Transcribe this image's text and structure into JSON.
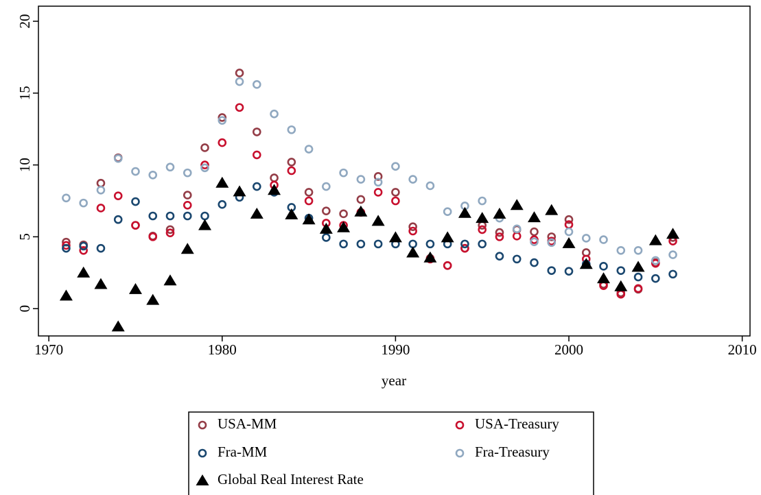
{
  "chart_data": {
    "type": "scatter",
    "x_label": "year",
    "x": [
      1971,
      1972,
      1973,
      1974,
      1975,
      1976,
      1977,
      1978,
      1979,
      1980,
      1981,
      1982,
      1983,
      1984,
      1985,
      1986,
      1987,
      1988,
      1989,
      1990,
      1991,
      1992,
      1993,
      1994,
      1995,
      1996,
      1997,
      1998,
      1999,
      2000,
      2001,
      2002,
      2003,
      2004,
      2005,
      2006
    ],
    "xlim": [
      1969.4,
      2010.45
    ],
    "xticks": [
      1970,
      1980,
      1990,
      2000,
      2010
    ],
    "ylim": [
      -1.9,
      21.05
    ],
    "yticks": [
      0,
      5,
      10,
      15,
      20
    ],
    "grid": false,
    "series": [
      {
        "name": "USA-MM",
        "color": "#943d47",
        "marker": "circle",
        "values": [
          4.63,
          4.44,
          8.73,
          10.5,
          5.8,
          5.05,
          5.5,
          7.9,
          11.2,
          13.3,
          16.4,
          12.3,
          9.1,
          10.2,
          8.1,
          6.8,
          6.6,
          7.6,
          9.2,
          8.1,
          5.7,
          3.5,
          3.0,
          4.2,
          5.8,
          5.3,
          5.5,
          5.35,
          5.0,
          6.2,
          3.9,
          1.7,
          1.1,
          1.35,
          3.2,
          4.95
        ]
      },
      {
        "name": "USA-Treasury",
        "color": "#c8102e",
        "marker": "circle",
        "values": [
          4.4,
          4.05,
          7.0,
          7.85,
          5.8,
          5.0,
          5.27,
          7.2,
          10.0,
          11.55,
          14.0,
          10.7,
          8.6,
          9.6,
          7.5,
          5.95,
          5.8,
          6.7,
          8.1,
          7.5,
          5.4,
          3.45,
          3.0,
          4.2,
          5.5,
          5.0,
          5.05,
          4.8,
          4.7,
          5.85,
          3.45,
          1.6,
          1.0,
          1.4,
          3.15,
          4.7
        ]
      },
      {
        "name": "Fra-MM",
        "color": "#1a476f",
        "marker": "circle",
        "values": [
          4.2,
          4.35,
          4.2,
          6.2,
          7.45,
          6.45,
          6.45,
          6.45,
          6.45,
          7.25,
          7.75,
          8.5,
          8.1,
          7.05,
          6.3,
          4.95,
          4.5,
          4.5,
          4.5,
          4.5,
          4.5,
          4.5,
          4.5,
          4.5,
          4.5,
          3.65,
          3.45,
          3.2,
          2.65,
          2.6,
          3.1,
          2.95,
          2.65,
          2.2,
          2.1,
          2.4
        ]
      },
      {
        "name": "Fra-Treasury",
        "color": "#90a8c0",
        "marker": "circle",
        "values": [
          7.7,
          7.35,
          8.25,
          10.45,
          9.55,
          9.3,
          9.85,
          9.45,
          9.8,
          13.1,
          15.8,
          15.6,
          13.55,
          12.45,
          11.1,
          8.5,
          9.45,
          9.0,
          8.8,
          9.9,
          9.0,
          8.55,
          6.75,
          7.15,
          7.5,
          6.3,
          5.55,
          4.65,
          4.6,
          5.35,
          4.9,
          4.8,
          4.05,
          4.05,
          3.35,
          3.75
        ]
      },
      {
        "name": "Global Real Interest Rate",
        "color": "#000000",
        "marker": "triangle",
        "values": [
          0.9,
          2.5,
          1.7,
          -1.25,
          1.35,
          0.6,
          1.95,
          4.15,
          5.8,
          8.75,
          8.15,
          6.6,
          8.25,
          6.55,
          6.2,
          5.55,
          5.65,
          6.75,
          6.1,
          4.95,
          3.9,
          3.55,
          4.95,
          6.65,
          6.3,
          6.6,
          7.2,
          6.35,
          6.85,
          4.55,
          3.1,
          2.1,
          1.55,
          2.9,
          4.75,
          5.2
        ]
      }
    ]
  }
}
